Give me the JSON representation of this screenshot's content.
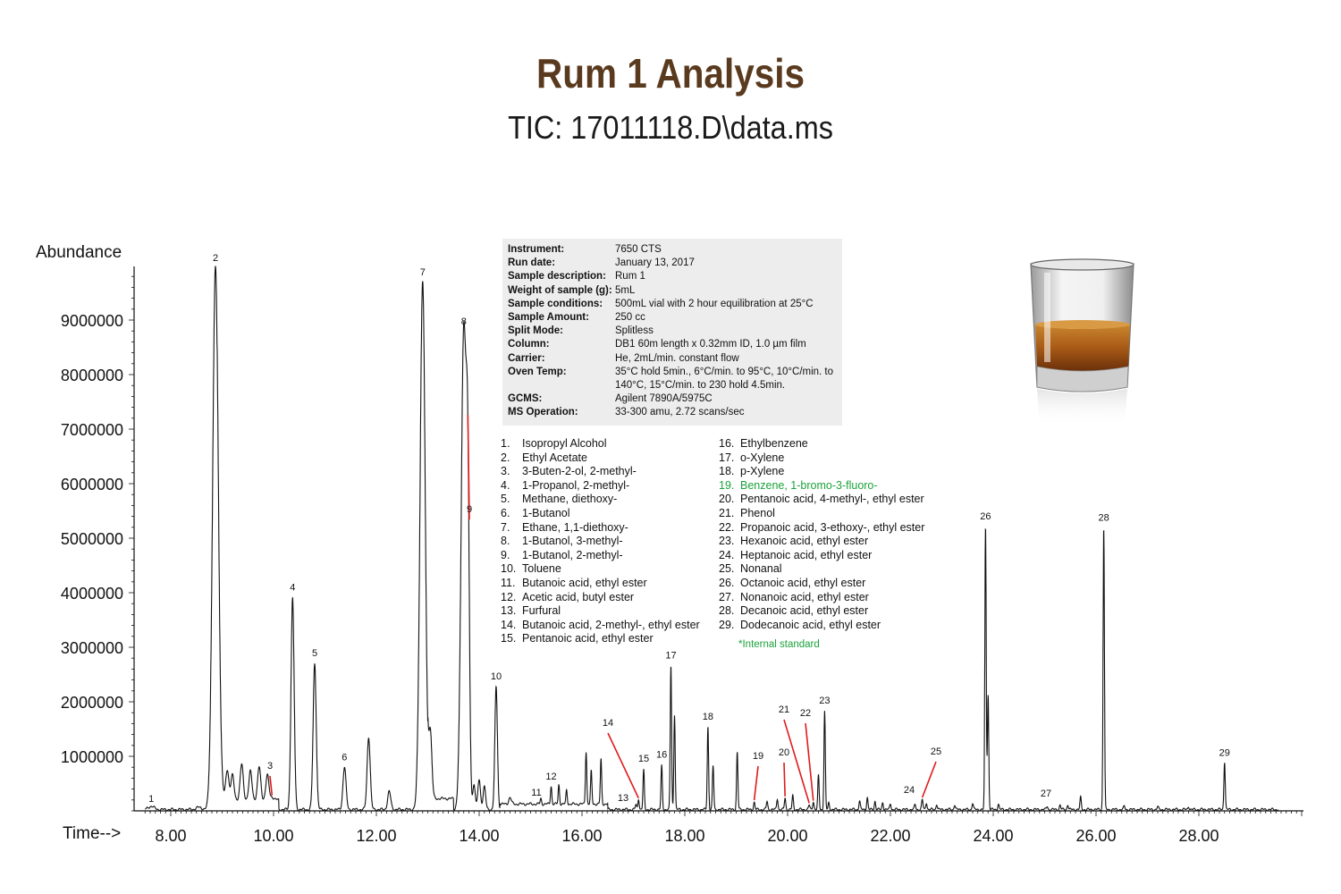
{
  "title": "Rum 1 Analysis",
  "subtitle": "TIC: 17011118.D\\data.ms",
  "chart_data": {
    "type": "line",
    "ylabel": "Abundance",
    "xlabel": "Time-->",
    "xlim": [
      7.5,
      30.0
    ],
    "ylim": [
      0,
      10000000
    ],
    "x_ticks": [
      "8.00",
      "10.00",
      "12.00",
      "14.00",
      "16.00",
      "18.00",
      "20.00",
      "22.00",
      "24.00",
      "26.00",
      "28.00"
    ],
    "x_tick_values": [
      8,
      10,
      12,
      14,
      16,
      18,
      20,
      22,
      24,
      26,
      28
    ],
    "y_ticks": [
      "1000000",
      "2000000",
      "3000000",
      "4000000",
      "5000000",
      "6000000",
      "7000000",
      "8000000",
      "9000000"
    ],
    "y_tick_values": [
      1000000,
      2000000,
      3000000,
      4000000,
      5000000,
      6000000,
      7000000,
      8000000,
      9000000
    ],
    "peaks": [
      {
        "label": "1",
        "t": 7.62,
        "h": 60000
      },
      {
        "label": "2",
        "t": 8.87,
        "h": 9950000
      },
      {
        "label": "3",
        "t": 9.97,
        "h": 50000,
        "pointer": true
      },
      {
        "label": "4",
        "t": 10.37,
        "h": 3870000
      },
      {
        "label": "5",
        "t": 10.8,
        "h": 2680000
      },
      {
        "label": "6",
        "t": 11.38,
        "h": 780000
      },
      {
        "label": "7",
        "t": 12.9,
        "h": 9700000
      },
      {
        "label": "8",
        "t": 13.7,
        "h": 8800000
      },
      {
        "label": "9",
        "t": 13.78,
        "h": 4750000,
        "pointer": true
      },
      {
        "label": "10",
        "t": 14.33,
        "h": 2250000
      },
      {
        "label": "11",
        "t": 15.2,
        "h": 100000
      },
      {
        "label": "12",
        "t": 15.4,
        "h": 330000
      },
      {
        "label": "13",
        "t": 17.05,
        "h": 90000
      },
      {
        "label": "14",
        "t": 17.1,
        "h": 200000,
        "pointer": true
      },
      {
        "label": "15",
        "t": 17.2,
        "h": 720000
      },
      {
        "label": "16",
        "t": 17.55,
        "h": 800000
      },
      {
        "label": "17",
        "t": 17.73,
        "h": 2640000
      },
      {
        "label": "18",
        "t": 18.45,
        "h": 1520000
      },
      {
        "label": "19",
        "t": 19.35,
        "h": 130000,
        "pointer": true,
        "highlight": true
      },
      {
        "label": "20",
        "t": 19.95,
        "h": 210000,
        "pointer": true
      },
      {
        "label": "21",
        "t": 20.42,
        "h": 80000,
        "pointer": true
      },
      {
        "label": "22",
        "t": 20.5,
        "h": 150000,
        "pointer": true
      },
      {
        "label": "23",
        "t": 20.72,
        "h": 1800000
      },
      {
        "label": "24",
        "t": 22.48,
        "h": 90000
      },
      {
        "label": "25",
        "t": 22.62,
        "h": 180000,
        "pointer": true
      },
      {
        "label": "26",
        "t": 23.85,
        "h": 5180000
      },
      {
        "label": "27",
        "t": 25.05,
        "h": 60000
      },
      {
        "label": "28",
        "t": 26.15,
        "h": 5180000
      },
      {
        "label": "29",
        "t": 28.5,
        "h": 880000
      }
    ],
    "unlabeled_peaks": [
      {
        "t": 8.55,
        "h": 40000
      },
      {
        "t": 9.1,
        "h": 550000
      },
      {
        "t": 9.2,
        "h": 450000
      },
      {
        "t": 9.38,
        "h": 650000
      },
      {
        "t": 9.55,
        "h": 520000
      },
      {
        "t": 9.72,
        "h": 600000
      },
      {
        "t": 9.88,
        "h": 450000
      },
      {
        "t": 11.85,
        "h": 1330000
      },
      {
        "t": 12.25,
        "h": 330000
      },
      {
        "t": 13.05,
        "h": 1200000
      },
      {
        "t": 13.9,
        "h": 450000
      },
      {
        "t": 14.0,
        "h": 550000
      },
      {
        "t": 14.1,
        "h": 420000
      },
      {
        "t": 14.6,
        "h": 120000
      },
      {
        "t": 15.55,
        "h": 350000
      },
      {
        "t": 15.7,
        "h": 250000
      },
      {
        "t": 16.08,
        "h": 970000
      },
      {
        "t": 16.18,
        "h": 600000
      },
      {
        "t": 16.37,
        "h": 820000
      },
      {
        "t": 17.8,
        "h": 1750000
      },
      {
        "t": 18.55,
        "h": 800000
      },
      {
        "t": 19.02,
        "h": 1050000
      },
      {
        "t": 19.6,
        "h": 150000
      },
      {
        "t": 19.8,
        "h": 200000
      },
      {
        "t": 20.1,
        "h": 250000
      },
      {
        "t": 20.6,
        "h": 620000
      },
      {
        "t": 20.8,
        "h": 120000
      },
      {
        "t": 21.4,
        "h": 160000
      },
      {
        "t": 21.55,
        "h": 220000
      },
      {
        "t": 21.7,
        "h": 150000
      },
      {
        "t": 21.85,
        "h": 130000
      },
      {
        "t": 22.0,
        "h": 110000
      },
      {
        "t": 22.7,
        "h": 130000
      },
      {
        "t": 22.9,
        "h": 100000
      },
      {
        "t": 23.25,
        "h": 90000
      },
      {
        "t": 23.6,
        "h": 120000
      },
      {
        "t": 23.9,
        "h": 2100000
      },
      {
        "t": 24.1,
        "h": 100000
      },
      {
        "t": 25.3,
        "h": 80000
      },
      {
        "t": 25.45,
        "h": 90000
      },
      {
        "t": 25.7,
        "h": 220000
      },
      {
        "t": 26.55,
        "h": 60000
      },
      {
        "t": 27.2,
        "h": 50000
      },
      {
        "t": 27.8,
        "h": 60000
      }
    ],
    "line_color": "#111111",
    "pointer_color": "#e01b1b",
    "highlight_color": "#1aa33a"
  },
  "info": [
    {
      "key": "Instrument:",
      "value": "7650 CTS"
    },
    {
      "key": "Run date:",
      "value": "January 13, 2017"
    },
    {
      "key": "Sample description:",
      "value": "Rum 1"
    },
    {
      "key": "Weight of sample (g):",
      "value": "5mL"
    },
    {
      "key": "Sample conditions:",
      "value": "500mL vial with 2 hour equilibration at 25°C"
    },
    {
      "key": "Sample Amount:",
      "value": "250 cc"
    },
    {
      "key": "Split Mode:",
      "value": "Splitless"
    },
    {
      "key": "Column:",
      "value": "DB1 60m length x 0.32mm ID, 1.0 µm film"
    },
    {
      "key": "Carrier:",
      "value": "He, 2mL/min. constant flow"
    },
    {
      "key": "Oven Temp:",
      "value": "35°C hold 5min., 6°C/min. to 95°C, 10°C/min. to 140°C, 15°C/min. to 230 hold 4.5min."
    },
    {
      "key": "GCMS:",
      "value": "Agilent 7890A/5975C"
    },
    {
      "key": "MS Operation:",
      "value": "33-300 amu, 2.72 scans/sec"
    }
  ],
  "compounds_left": [
    {
      "num": "1.",
      "name": "Isopropyl Alcohol"
    },
    {
      "num": "2.",
      "name": "Ethyl Acetate"
    },
    {
      "num": "3.",
      "name": "3-Buten-2-ol, 2-methyl-"
    },
    {
      "num": "4.",
      "name": "1-Propanol, 2-methyl-"
    },
    {
      "num": "5.",
      "name": "Methane, diethoxy-"
    },
    {
      "num": "6.",
      "name": "1-Butanol"
    },
    {
      "num": "7.",
      "name": "Ethane, 1,1-diethoxy-"
    },
    {
      "num": "8.",
      "name": "1-Butanol, 3-methyl-"
    },
    {
      "num": "9.",
      "name": "1-Butanol, 2-methyl-"
    },
    {
      "num": "10.",
      "name": "Toluene"
    },
    {
      "num": "11.",
      "name": "Butanoic acid, ethyl ester"
    },
    {
      "num": "12.",
      "name": "Acetic acid, butyl ester"
    },
    {
      "num": "13.",
      "name": "Furfural"
    },
    {
      "num": "14.",
      "name": "Butanoic acid, 2-methyl-, ethyl ester"
    },
    {
      "num": "15.",
      "name": "Pentanoic acid, ethyl ester"
    }
  ],
  "compounds_right": [
    {
      "num": "16.",
      "name": "Ethylbenzene"
    },
    {
      "num": "17.",
      "name": "o-Xylene"
    },
    {
      "num": "18.",
      "name": "p-Xylene"
    },
    {
      "num": "19.",
      "name": "Benzene, 1-bromo-3-fluoro-",
      "standard": true
    },
    {
      "num": "20.",
      "name": "Pentanoic acid, 4-methyl-, ethyl ester"
    },
    {
      "num": "21.",
      "name": "Phenol"
    },
    {
      "num": "22.",
      "name": "Propanoic acid, 3-ethoxy-, ethyl ester"
    },
    {
      "num": "23.",
      "name": "Hexanoic acid, ethyl ester"
    },
    {
      "num": "24.",
      "name": "Heptanoic acid, ethyl ester"
    },
    {
      "num": "25.",
      "name": "Nonanal"
    },
    {
      "num": "26.",
      "name": "Octanoic acid, ethyl ester"
    },
    {
      "num": "27.",
      "name": "Nonanoic acid, ethyl ester"
    },
    {
      "num": "28.",
      "name": "Decanoic acid, ethyl ester"
    },
    {
      "num": "29.",
      "name": "Dodecanoic acid, ethyl ester"
    }
  ],
  "note": "*Internal standard",
  "glass_icon": "whiskey-glass-icon"
}
